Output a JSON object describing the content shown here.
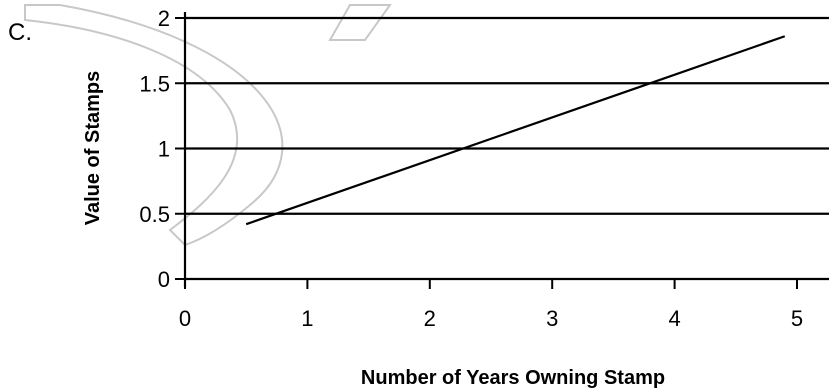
{
  "option_label": "C.",
  "watermark_color": "#c8c8c8",
  "chart_data": {
    "type": "line",
    "title": "",
    "xlabel": "Number of Years Owning Stamp",
    "ylabel": "Value of Stamps",
    "xlim": [
      0,
      5
    ],
    "ylim": [
      0,
      2
    ],
    "x_ticks": [
      0,
      1,
      2,
      3,
      4,
      5
    ],
    "y_ticks": [
      0,
      0.5,
      1,
      1.5,
      2
    ],
    "x_tick_labels": [
      "0",
      "1",
      "2",
      "3",
      "4",
      "5"
    ],
    "y_tick_labels": [
      "0",
      "0.5",
      "1",
      "1.5",
      "2"
    ],
    "grid": "horizontal",
    "series": [
      {
        "color": "#000000",
        "x": [
          0.5,
          4.9
        ],
        "y": [
          0.42,
          1.86
        ]
      }
    ]
  }
}
